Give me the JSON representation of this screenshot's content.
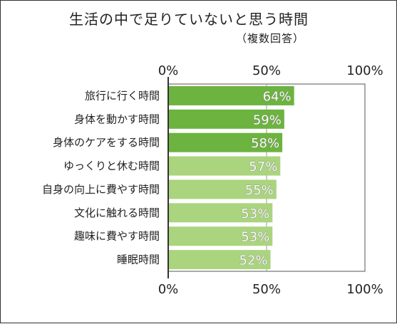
{
  "title": "生活の中で足りていないと思う時間",
  "subtitle": "（複数回答）",
  "colors": {
    "top3_bar": "#6cb33f",
    "other_bar": "#aad47e",
    "axis": "#333333",
    "grid": "#9a9a9a",
    "plot_border": "#555555"
  },
  "chart_data": {
    "type": "bar",
    "orientation": "horizontal",
    "title": "生活の中で足りていないと思う時間",
    "subtitle": "（複数回答）",
    "categories": [
      "旅行に行く時間",
      "身体を動かす時間",
      "身体のケアをする時間",
      "ゆっくりと休む時間",
      "自身の向上に費やす時間",
      "文化に触れる時間",
      "趣味に費やす時間",
      "睡眠時間"
    ],
    "values": [
      64,
      59,
      58,
      57,
      55,
      53,
      53,
      52
    ],
    "value_labels": [
      "64%",
      "59%",
      "58%",
      "57%",
      "55%",
      "53%",
      "53%",
      "52%"
    ],
    "highlighted_top": 3,
    "xlim": [
      0,
      100
    ],
    "xticks": [
      0,
      50,
      100
    ],
    "xtick_labels": [
      "0%",
      "50%",
      "100%"
    ],
    "xtick_position": "top and bottom",
    "grid": "vertical at 50%",
    "legend": "none"
  }
}
